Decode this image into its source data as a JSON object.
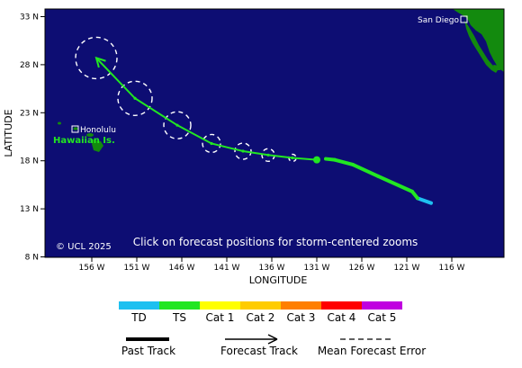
{
  "map": {
    "xlabel": "LONGITUDE",
    "ylabel": "LATITUDE",
    "x_ticks": [
      "156 W",
      "151 W",
      "146 W",
      "141 W",
      "136 W",
      "131 W",
      "126 W",
      "121 W",
      "116 W"
    ],
    "y_ticks": [
      "33 N",
      "28 N",
      "23 N",
      "18 N",
      "13 N",
      "8 N"
    ],
    "copyright": "© UCL 2025",
    "instruction": "Click on forecast positions for storm-centered zooms",
    "cities": [
      {
        "name": "San Diego",
        "lon": -117.2,
        "lat": 32.7
      },
      {
        "name": "Honolulu",
        "lon": -157.9,
        "lat": 21.3
      }
    ],
    "region_label": "Hawaiian Is.",
    "colors": {
      "ocean": "#0d0d73",
      "land": "#138a0e",
      "td": "#1ec0f0",
      "ts": "#22e622",
      "forecast_error_circle": "#ffffff"
    },
    "past_track": [
      {
        "lon": -118.3,
        "lat": 13.6,
        "category": "TD"
      },
      {
        "lon": -119.8,
        "lat": 14.1,
        "category": "TD"
      },
      {
        "lon": -120.4,
        "lat": 14.8,
        "category": "TS"
      },
      {
        "lon": -124.2,
        "lat": 16.4,
        "category": "TS"
      },
      {
        "lon": -127.0,
        "lat": 17.6,
        "category": "TS"
      },
      {
        "lon": -129.0,
        "lat": 18.1,
        "category": "TS"
      },
      {
        "lon": -130.0,
        "lat": 18.2,
        "category": "TS"
      }
    ],
    "current_position": {
      "lon": -131.0,
      "lat": 18.1
    },
    "forecast_track": [
      {
        "lon": -131.0,
        "lat": 18.1
      },
      {
        "lon": -133.7,
        "lat": 18.3
      },
      {
        "lon": -136.4,
        "lat": 18.6
      },
      {
        "lon": -139.2,
        "lat": 19.0
      },
      {
        "lon": -142.7,
        "lat": 19.8
      },
      {
        "lon": -146.5,
        "lat": 21.7
      },
      {
        "lon": -151.2,
        "lat": 24.5
      },
      {
        "lon": -155.5,
        "lat": 28.7
      }
    ],
    "error_circles": [
      {
        "lon": -133.7,
        "lat": 18.3,
        "radius_deg": 0.4
      },
      {
        "lon": -136.4,
        "lat": 18.6,
        "radius_deg": 0.7
      },
      {
        "lon": -139.2,
        "lat": 19.0,
        "radius_deg": 0.9
      },
      {
        "lon": -142.7,
        "lat": 19.8,
        "radius_deg": 1.0
      },
      {
        "lon": -146.5,
        "lat": 21.7,
        "radius_deg": 1.5
      },
      {
        "lon": -151.2,
        "lat": 24.5,
        "radius_deg": 1.9
      },
      {
        "lon": -155.5,
        "lat": 28.7,
        "radius_deg": 2.3
      }
    ]
  },
  "legend": {
    "categories": [
      {
        "label": "TD",
        "color": "#1ec0f0"
      },
      {
        "label": "TS",
        "color": "#22e622"
      },
      {
        "label": "Cat 1",
        "color": "#ffff00"
      },
      {
        "label": "Cat 2",
        "color": "#ffcc00"
      },
      {
        "label": "Cat 3",
        "color": "#ff7f00"
      },
      {
        "label": "Cat 4",
        "color": "#ff0000"
      },
      {
        "label": "Cat 5",
        "color": "#c000e0"
      }
    ],
    "past_track": "Past Track",
    "forecast_track": "Forecast Track",
    "mean_forecast_error": "Mean Forecast Error"
  }
}
